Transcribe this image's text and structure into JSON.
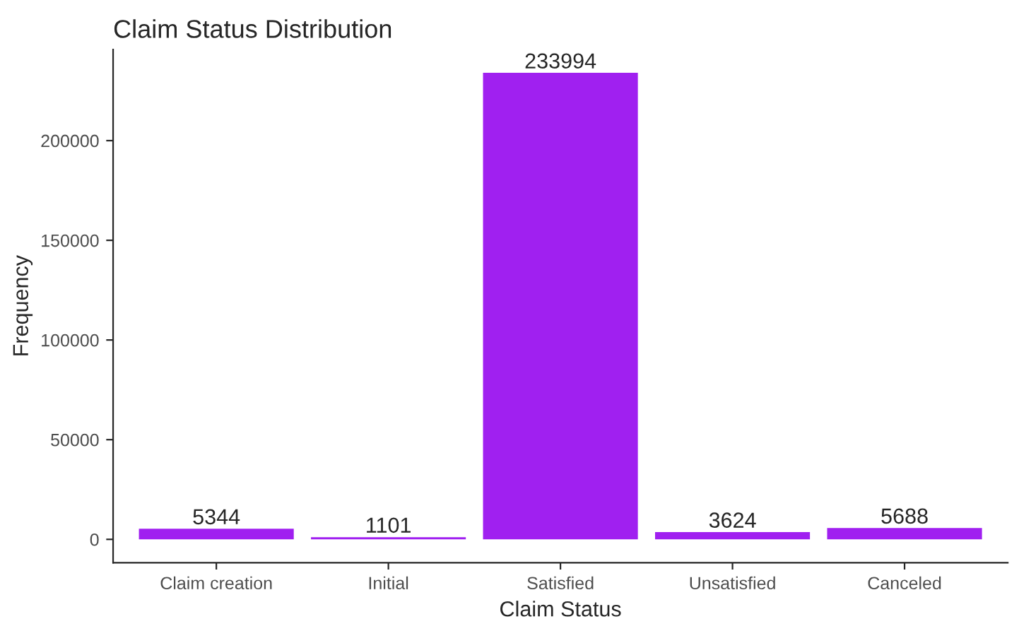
{
  "chart_data": {
    "type": "bar",
    "title": "Claim Status Distribution",
    "xlabel": "Claim Status",
    "ylabel": "Frequency",
    "categories": [
      "Claim creation",
      "Initial",
      "Satisfied",
      "Unsatisfied",
      "Canceled"
    ],
    "values": [
      5344,
      1101,
      233994,
      3624,
      5688
    ],
    "color": "#a020f0",
    "ylim": [
      -11700,
      245700
    ],
    "yticks": [
      0,
      50000,
      100000,
      150000,
      200000
    ],
    "data_labels": true,
    "grid": false,
    "legend": false
  }
}
